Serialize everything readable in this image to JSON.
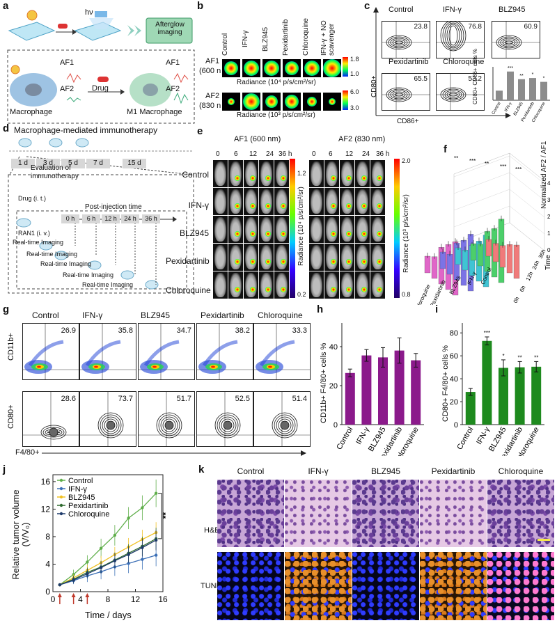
{
  "panels": [
    "a",
    "b",
    "c",
    "d",
    "e",
    "f",
    "g",
    "h",
    "i",
    "j",
    "k"
  ],
  "a": {
    "hv": "hν",
    "afterglow": "Afterglow imaging",
    "af1": "AF1",
    "af2": "AF2",
    "drug": "Drug",
    "macrophage": "Macrophage",
    "m1": "M1 Macrophage"
  },
  "b": {
    "cols": [
      "Control",
      "IFN-γ",
      "BLZ945",
      "Pexidartinib",
      "Chloroquine",
      "IFN-γ + NO scavenger"
    ],
    "af1_label": "AF1",
    "af1_nm": "(600 nm)",
    "af2_label": "AF2",
    "af2_nm": "(830 nm)",
    "rad1": "Radiance (10⁴ p/s/cm²/sr)",
    "rad2": "Radiance (10³ p/s/cm²/sr)",
    "s1max": "1.8",
    "s1min": "1.0",
    "s2max": "6.0",
    "s2min": "3.0"
  },
  "c": {
    "groups": [
      "Control",
      "IFN-γ",
      "BLZ945",
      "Pexidartinib",
      "Chloroquine"
    ],
    "values": [
      "23.8",
      "76.8",
      "60.9",
      "65.5",
      "53.2"
    ],
    "ylabel": "CD80+",
    "xlabel": "CD86+",
    "inset_ylabel": "CD80+ CD86+ cells %",
    "inset_values": [
      25,
      75,
      55,
      58,
      48
    ],
    "inset_stars": [
      "",
      "***",
      "**",
      "*",
      "*"
    ]
  },
  "d": {
    "title": "Macrophage-mediated immunotherapy",
    "days": [
      "1 d",
      "3 d",
      "5 d",
      "7 d",
      "15 d"
    ],
    "eval": "Evaluation of immunotherapy",
    "drug": "Drug (i. t.)",
    "ran": "RAN1 (i. v.)",
    "post": "Post-injection time",
    "times": [
      "0 h",
      "6 h",
      "12 h",
      "24 h",
      "36 h"
    ],
    "rti": "Real-time Imaging"
  },
  "e": {
    "af1": "AF1 (600 nm)",
    "af2": "AF2 (830 nm)",
    "times": [
      "0",
      "6",
      "12",
      "24",
      "36 h"
    ],
    "groups": [
      "Control",
      "IFN-γ",
      "BLZ945",
      "Pexidartinib",
      "Chloroquine"
    ],
    "rad1": "Radiance (10⁴ p/s/cm²/sr)",
    "rad2": "Radiance (10³ p/s/cm²/sr)",
    "s1max": "1.2",
    "s1min": "0.2",
    "s2max": "2.0",
    "s2min": "0.8"
  },
  "f": {
    "zlabel": "Normalized AF2 / AF1",
    "time_label": "Time",
    "groups": [
      "Chloroquine",
      "Pexidartinib",
      "BLZ945",
      "IFN-γ",
      "Control"
    ],
    "times": [
      "0h",
      "6h",
      "12h",
      "24h",
      "36h"
    ],
    "z_ticks": [
      "0",
      "1",
      "2",
      "3",
      "4"
    ]
  },
  "g": {
    "groups": [
      "Control",
      "IFN-γ",
      "BLZ945",
      "Pexidartinib",
      "Chloroquine"
    ],
    "top_values": [
      "26.9",
      "35.8",
      "34.7",
      "38.2",
      "33.3"
    ],
    "bottom_values": [
      "28.6",
      "73.7",
      "51.7",
      "52.5",
      "51.4"
    ],
    "y_top": "CD11b+",
    "y_bottom": "CD80+",
    "xlabel": "F4/80+"
  },
  "chart_data": [
    {
      "type": "bar",
      "panel": "h",
      "categories": [
        "Control",
        "IFN-γ",
        "BLZ945",
        "Pexidartinib",
        "Chloroquine"
      ],
      "values": [
        26.5,
        35.5,
        34.5,
        38,
        33
      ],
      "errors": [
        2,
        3,
        5,
        6.5,
        3.5
      ],
      "ylabel": "CD11b+ F4/80+ cells %",
      "ylim": [
        0,
        50
      ],
      "yticks": [
        0,
        20,
        40
      ],
      "color": "#8b1a8b"
    },
    {
      "type": "bar",
      "panel": "i",
      "categories": [
        "Control",
        "IFN-γ",
        "BLZ945",
        "Pexidartinib",
        "Chloroquine"
      ],
      "values": [
        28.5,
        73,
        49.5,
        50,
        50.5
      ],
      "errors": [
        3,
        3.5,
        7,
        5,
        4.5
      ],
      "stars": [
        "",
        "***",
        "*",
        "**",
        "**"
      ],
      "ylabel": "CD80+ F4/80+ cells %",
      "ylim": [
        0,
        85
      ],
      "yticks": [
        0,
        20,
        40,
        60,
        80
      ],
      "color": "#1e8a1e"
    },
    {
      "type": "line",
      "panel": "j",
      "x": [
        1,
        3,
        5,
        7,
        9,
        11,
        13,
        15
      ],
      "series": [
        {
          "name": "Control",
          "values": [
            1,
            2.5,
            4.3,
            6.3,
            8.2,
            10.7,
            12.2,
            14.3
          ],
          "errors": [
            0,
            0.7,
            1,
            1.4,
            1.5,
            1.6,
            1.8,
            2
          ],
          "color": "#5fae4a"
        },
        {
          "name": "IFN-γ",
          "values": [
            1,
            1.6,
            2.3,
            2.9,
            3.6,
            4.1,
            4.7,
            5.3
          ],
          "errors": [
            0,
            0.5,
            0.9,
            1.1,
            1.3,
            1.4,
            1.5,
            1.6
          ],
          "color": "#3b6fb6"
        },
        {
          "name": "BLZ945",
          "values": [
            1,
            2,
            3.1,
            4.2,
            5.4,
            6.5,
            7.6,
            8.6
          ],
          "errors": [
            0,
            0.5,
            0.8,
            1,
            1.1,
            1.3,
            1.4,
            1.5
          ],
          "color": "#f0c020"
        },
        {
          "name": "Pexidartinib",
          "values": [
            1,
            1.8,
            2.8,
            3.6,
            4.6,
            5.6,
            6.6,
            7.7
          ],
          "errors": [
            0,
            0.5,
            0.7,
            0.9,
            1.1,
            1.3,
            1.4,
            1.6
          ],
          "color": "#2f6b2f"
        },
        {
          "name": "Chloroquine",
          "values": [
            1,
            1.7,
            2.6,
            3.5,
            4.5,
            5.4,
            6.4,
            7.5
          ],
          "errors": [
            0,
            0.5,
            0.7,
            0.9,
            1.1,
            1.2,
            1.3,
            1.5
          ],
          "color": "#1e3a6b"
        }
      ],
      "xlabel": "Time / days",
      "ylabel": "Relative tumor volume (V/V₀)",
      "xlim": [
        0,
        16
      ],
      "ylim": [
        0,
        17
      ],
      "xticks": [
        0,
        4,
        8,
        12,
        16
      ],
      "yticks": [
        0,
        4,
        8,
        12,
        16
      ],
      "annotation": "**",
      "injection_days": [
        1,
        3,
        5
      ]
    }
  ],
  "k": {
    "groups": [
      "Control",
      "IFN-γ",
      "BLZ945",
      "Pexidartinib",
      "Chloroquine"
    ],
    "rows": [
      "H&E",
      "TUNEL"
    ]
  }
}
